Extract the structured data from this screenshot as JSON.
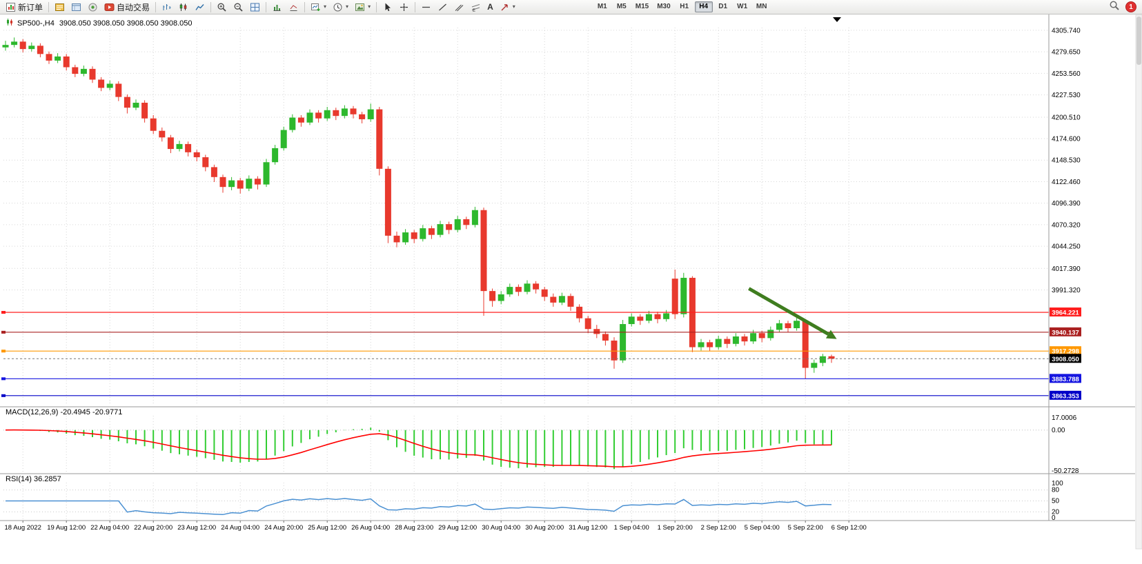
{
  "toolbar": {
    "new_order_label": "新订单",
    "autotrade_label": "自动交易",
    "timeframes": [
      "M1",
      "M5",
      "M15",
      "M30",
      "H1",
      "H4",
      "D1",
      "W1",
      "MN"
    ],
    "active_timeframe": "H4",
    "notification_count": "1",
    "text_tool_label": "A"
  },
  "chart": {
    "symbol_title": "SP500-,H4",
    "ohlc_display": "3908.050 3908.050 3908.050 3908.050"
  },
  "macd_panel": {
    "label": "MACD(12,26,9) -20.4945 -20.9771"
  },
  "rsi_panel": {
    "label": "RSI(14) 36.2857"
  },
  "chart_data": {
    "type": "candlestick",
    "symbol": "SP500-",
    "timeframe": "H4",
    "price_range": {
      "max": 4309,
      "min": 3854
    },
    "price_axis_labels": [
      "4305.740",
      "4279.650",
      "4253.560",
      "4227.530",
      "4200.510",
      "4174.600",
      "4148.530",
      "4122.460",
      "4096.390",
      "4070.320",
      "4044.250",
      "4017.390",
      "3991.320"
    ],
    "date_labels": [
      "18 Aug 2022",
      "19 Aug 12:00",
      "22 Aug 04:00",
      "22 Aug 20:00",
      "23 Aug 12:00",
      "24 Aug 04:00",
      "24 Aug 20:00",
      "25 Aug 12:00",
      "26 Aug 04:00",
      "28 Aug 23:00",
      "29 Aug 12:00",
      "30 Aug 04:00",
      "30 Aug 20:00",
      "31 Aug 12:00",
      "1 Sep 04:00",
      "1 Sep 20:00",
      "2 Sep 12:00",
      "5 Sep 04:00",
      "5 Sep 22:00",
      "6 Sep 12:00"
    ],
    "candles": [
      [
        4285,
        4293,
        4281,
        4288
      ],
      [
        4288,
        4297,
        4285,
        4292
      ],
      [
        4292,
        4295,
        4279,
        4283
      ],
      [
        4283,
        4291,
        4280,
        4287
      ],
      [
        4287,
        4290,
        4273,
        4277
      ],
      [
        4277,
        4280,
        4265,
        4269
      ],
      [
        4269,
        4278,
        4266,
        4274
      ],
      [
        4274,
        4277,
        4257,
        4261
      ],
      [
        4261,
        4264,
        4249,
        4253
      ],
      [
        4253,
        4263,
        4250,
        4259
      ],
      [
        4259,
        4262,
        4242,
        4246
      ],
      [
        4246,
        4249,
        4232,
        4236
      ],
      [
        4236,
        4245,
        4233,
        4241
      ],
      [
        4241,
        4244,
        4220,
        4225
      ],
      [
        4225,
        4228,
        4205,
        4212
      ],
      [
        4212,
        4222,
        4209,
        4218
      ],
      [
        4218,
        4221,
        4194,
        4199
      ],
      [
        4199,
        4203,
        4180,
        4184
      ],
      [
        4184,
        4188,
        4171,
        4176
      ],
      [
        4176,
        4179,
        4157,
        4162
      ],
      [
        4162,
        4172,
        4159,
        4168
      ],
      [
        4168,
        4171,
        4153,
        4158
      ],
      [
        4158,
        4161,
        4147,
        4152
      ],
      [
        4152,
        4155,
        4135,
        4140
      ],
      [
        4140,
        4143,
        4122,
        4128
      ],
      [
        4128,
        4131,
        4109,
        4116
      ],
      [
        4116,
        4128,
        4112,
        4124
      ],
      [
        4124,
        4127,
        4108,
        4114
      ],
      [
        4114,
        4130,
        4111,
        4126
      ],
      [
        4126,
        4129,
        4113,
        4119
      ],
      [
        4119,
        4150,
        4116,
        4146
      ],
      [
        4146,
        4167,
        4143,
        4163
      ],
      [
        4163,
        4189,
        4160,
        4185
      ],
      [
        4185,
        4204,
        4182,
        4200
      ],
      [
        4200,
        4203,
        4189,
        4194
      ],
      [
        4194,
        4210,
        4191,
        4206
      ],
      [
        4206,
        4209,
        4194,
        4199
      ],
      [
        4199,
        4213,
        4196,
        4209
      ],
      [
        4209,
        4212,
        4197,
        4202
      ],
      [
        4202,
        4215,
        4199,
        4211
      ],
      [
        4211,
        4214,
        4199,
        4204
      ],
      [
        4204,
        4207,
        4193,
        4198
      ],
      [
        4198,
        4217,
        4195,
        4210
      ],
      [
        4210,
        4213,
        4130,
        4138
      ],
      [
        4138,
        4141,
        4048,
        4057
      ],
      [
        4057,
        4062,
        4043,
        4049
      ],
      [
        4049,
        4065,
        4046,
        4061
      ],
      [
        4061,
        4064,
        4048,
        4053
      ],
      [
        4053,
        4070,
        4050,
        4066
      ],
      [
        4066,
        4069,
        4053,
        4058
      ],
      [
        4058,
        4075,
        4055,
        4071
      ],
      [
        4071,
        4074,
        4059,
        4064
      ],
      [
        4064,
        4081,
        4061,
        4077
      ],
      [
        4077,
        4080,
        4065,
        4070
      ],
      [
        4070,
        4092,
        4067,
        4088
      ],
      [
        4088,
        4091,
        3960,
        3990
      ],
      [
        3990,
        3993,
        3971,
        3978
      ],
      [
        3978,
        3990,
        3974,
        3986
      ],
      [
        3986,
        3999,
        3983,
        3995
      ],
      [
        3995,
        3998,
        3984,
        3989
      ],
      [
        3989,
        4003,
        3986,
        3999
      ],
      [
        3999,
        4002,
        3987,
        3992
      ],
      [
        3992,
        3995,
        3978,
        3983
      ],
      [
        3983,
        3987,
        3971,
        3976
      ],
      [
        3976,
        3988,
        3973,
        3984
      ],
      [
        3984,
        3987,
        3966,
        3971
      ],
      [
        3971,
        3974,
        3952,
        3957
      ],
      [
        3957,
        3960,
        3939,
        3944
      ],
      [
        3944,
        3949,
        3933,
        3938
      ],
      [
        3938,
        3941,
        3924,
        3930
      ],
      [
        3930,
        3934,
        3896,
        3906
      ],
      [
        3906,
        3955,
        3903,
        3950
      ],
      [
        3950,
        3963,
        3947,
        3959
      ],
      [
        3959,
        3962,
        3949,
        3954
      ],
      [
        3954,
        3966,
        3951,
        3962
      ],
      [
        3962,
        3965,
        3951,
        3956
      ],
      [
        3956,
        3967,
        3953,
        3963
      ],
      [
        4005,
        4016,
        3956,
        3962
      ],
      [
        3962,
        4012,
        3958,
        4006
      ],
      [
        4006,
        4008,
        3916,
        3922
      ],
      [
        3922,
        3932,
        3918,
        3928
      ],
      [
        3928,
        3931,
        3917,
        3922
      ],
      [
        3922,
        3936,
        3919,
        3932
      ],
      [
        3932,
        3935,
        3921,
        3926
      ],
      [
        3926,
        3939,
        3923,
        3935
      ],
      [
        3935,
        3938,
        3924,
        3929
      ],
      [
        3929,
        3943,
        3926,
        3939
      ],
      [
        3939,
        3942,
        3928,
        3933
      ],
      [
        3933,
        3947,
        3930,
        3943
      ],
      [
        3943,
        3955,
        3940,
        3951
      ],
      [
        3951,
        3954,
        3940,
        3945
      ],
      [
        3945,
        3958,
        3942,
        3954
      ],
      [
        3954,
        3956,
        3884,
        3897
      ],
      [
        3897,
        3907,
        3891,
        3903
      ],
      [
        3903,
        3914,
        3899,
        3911
      ],
      [
        3911,
        3913,
        3903,
        3908.05
      ]
    ],
    "levels": [
      {
        "price": 3964.221,
        "label": "3964.221",
        "color": "#ff1e1e"
      },
      {
        "price": 3940.137,
        "label": "3940.137",
        "color": "#aa2020"
      },
      {
        "price": 3917.298,
        "label": "3917.298",
        "color": "#ff9800"
      },
      {
        "price": 3883.788,
        "label": "3883.788",
        "color": "#1515e0"
      },
      {
        "price": 3863.353,
        "label": "3863.353",
        "color": "#0000c8"
      }
    ],
    "current_price": {
      "price": 3908.05,
      "label": "3908.050",
      "color": "#000000"
    },
    "arrow": {
      "c1": 85.5,
      "p1": 3993,
      "c2": 95.6,
      "p2": 3932,
      "color": "#3f7d1f"
    },
    "macd": {
      "params": "12,26,9",
      "value": -20.4945,
      "signal": -20.9771,
      "axis_max": "17.0006",
      "axis_zero": "0.00",
      "axis_min": "-50.2728"
    },
    "rsi": {
      "period": 14,
      "value": 36.2857,
      "levels": [
        80,
        50,
        20
      ],
      "axis_labels": [
        "100",
        "80",
        "50",
        "20",
        "0"
      ]
    },
    "colors": {
      "up": "#2db82d",
      "down": "#e8392d",
      "grid": "#d6d6d6",
      "macd_hist": "#32cd32",
      "macd_signal": "#ff0000",
      "rsi_line": "#4a90d2"
    }
  }
}
